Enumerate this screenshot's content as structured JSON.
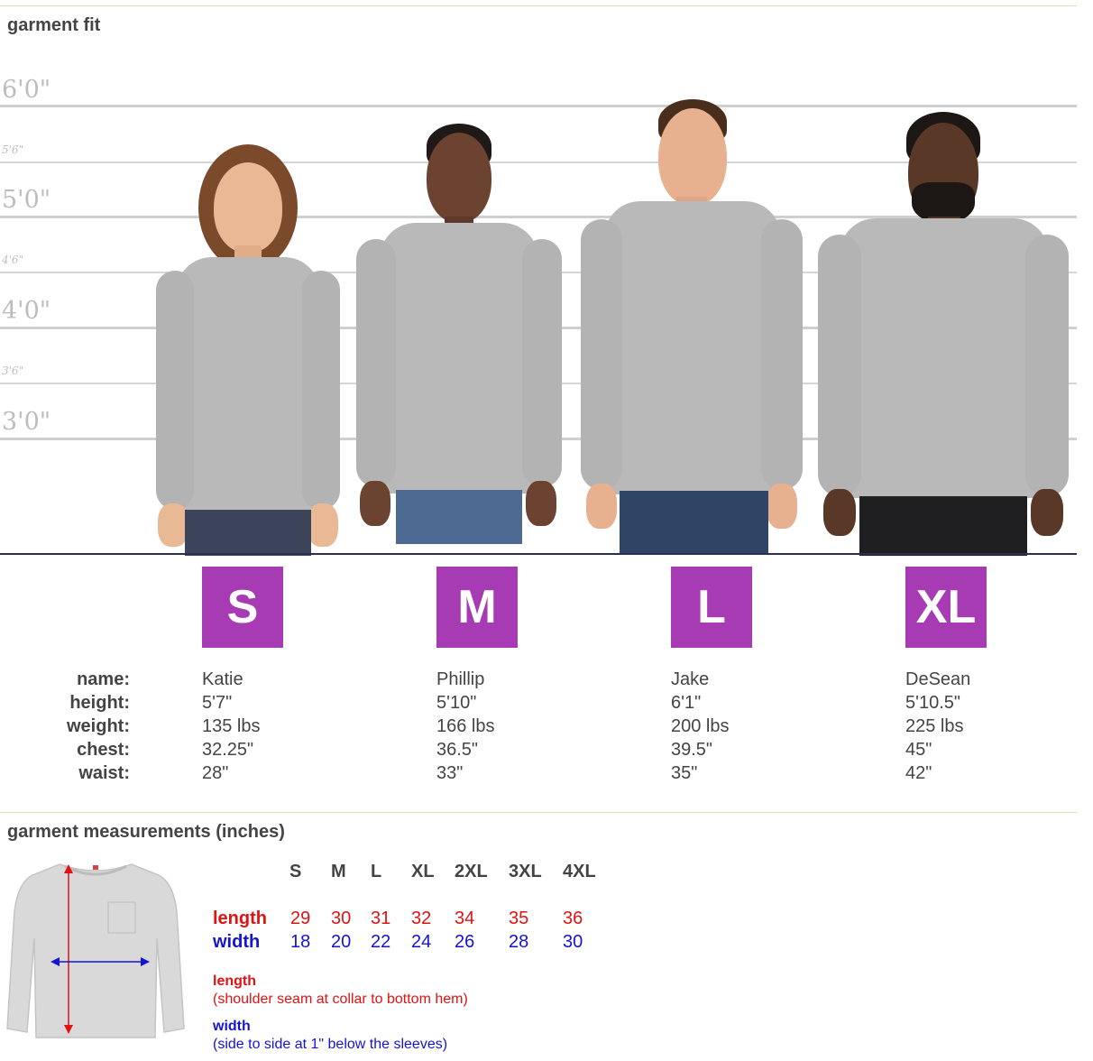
{
  "fit": {
    "title": "garment fit",
    "height_marks": [
      "6'0\"",
      "5'6\"",
      "5'0\"",
      "4'6\"",
      "4'0\"",
      "3'6\"",
      "3'0\""
    ],
    "stat_labels": [
      "name:",
      "height:",
      "weight:",
      "chest:",
      "waist:"
    ],
    "models": [
      {
        "size": "S",
        "name": "Katie",
        "height": "5'7\"",
        "weight": "135 lbs",
        "chest": "32.25\"",
        "waist": "28\""
      },
      {
        "size": "M",
        "name": "Phillip",
        "height": "5'10\"",
        "weight": "166 lbs",
        "chest": "36.5\"",
        "waist": "33\""
      },
      {
        "size": "L",
        "name": "Jake",
        "height": "6'1\"",
        "weight": "200 lbs",
        "chest": "39.5\"",
        "waist": "35\""
      },
      {
        "size": "XL",
        "name": "DeSean",
        "height": "5'10.5\"",
        "weight": "225 lbs",
        "chest": "45\"",
        "waist": "42\""
      }
    ],
    "colors": {
      "badge": "#a63bb4",
      "shirt": "#b9b9b9",
      "baseline": "#2b2f52"
    }
  },
  "measurements": {
    "title": "garment measurements (inches)",
    "sizes": [
      "S",
      "M",
      "L",
      "XL",
      "2XL",
      "3XL",
      "4XL"
    ],
    "length_label": "length",
    "width_label": "width",
    "length": [
      "29",
      "30",
      "31",
      "32",
      "34",
      "35",
      "36"
    ],
    "width": [
      "18",
      "20",
      "22",
      "24",
      "26",
      "28",
      "30"
    ],
    "length_note_title": "length",
    "length_note": "(shoulder seam at collar to bottom hem)",
    "width_note_title": "width",
    "width_note": "(side to side at 1\" below the sleeves)",
    "colors": {
      "length": "#e01212",
      "width": "#1414d2"
    }
  }
}
